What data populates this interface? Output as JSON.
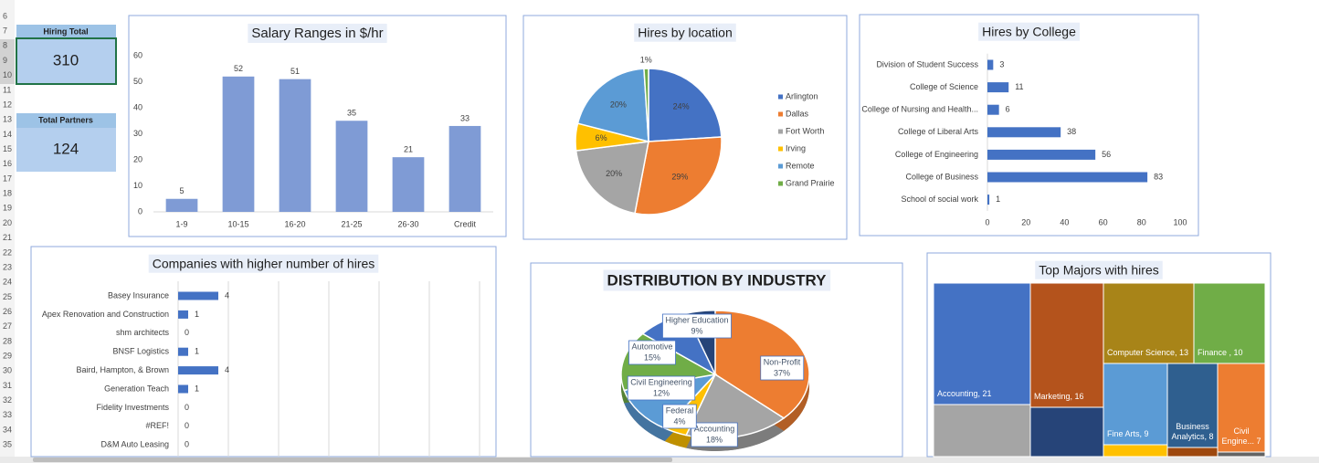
{
  "row_numbers": [
    "6",
    "7",
    "8",
    "9",
    "10",
    "11",
    "12",
    "13",
    "14",
    "15",
    "16",
    "17",
    "18",
    "19",
    "20",
    "21",
    "22",
    "23",
    "24",
    "25",
    "26",
    "27",
    "28",
    "29",
    "30",
    "31",
    "32",
    "33",
    "34",
    "35"
  ],
  "kpis": [
    {
      "label": "Hiring Total",
      "value": 310
    },
    {
      "label": "Total Partners",
      "value": 124
    }
  ],
  "chart_data": [
    {
      "type": "bar",
      "title": "Salary Ranges in $/hr",
      "categories": [
        "1-9",
        "10-15",
        "16-20",
        "21-25",
        "26-30",
        "Credit"
      ],
      "values": [
        5,
        52,
        51,
        35,
        21,
        33
      ],
      "color": "#7f9bd5",
      "ylim": [
        0,
        60
      ],
      "yticks": [
        0,
        10,
        20,
        30,
        40,
        50,
        60
      ],
      "grid": false
    },
    {
      "type": "pie",
      "title": "Hires by location",
      "categories": [
        "Arlington",
        "Dallas",
        "Fort Worth",
        "Irving",
        "Remote",
        "Grand Prairie"
      ],
      "values": [
        24,
        29,
        20,
        6,
        20,
        1
      ],
      "value_labels": [
        "24%",
        "29%",
        "20%",
        "6%",
        "20%",
        "1%"
      ],
      "colors": [
        "#4472c4",
        "#ed7d31",
        "#a5a5a5",
        "#ffc000",
        "#5b9bd5",
        "#70ad47"
      ],
      "legend": "right"
    },
    {
      "type": "bar",
      "horizontal": true,
      "title": "Hires by College",
      "categories": [
        "Division of Student Success",
        "College of Science",
        "College of Nursing and Health...",
        "College of Liberal Arts",
        "College of Engineering",
        "College of Business",
        "School of social work"
      ],
      "values": [
        3,
        11,
        6,
        38,
        56,
        83,
        1
      ],
      "color": "#4472c4",
      "xlim": [
        0,
        100
      ],
      "xticks": [
        0,
        20,
        40,
        60,
        80,
        100
      ],
      "grid": false
    },
    {
      "type": "bar",
      "horizontal": true,
      "title": "Companies with higher number of hires",
      "categories": [
        "Basey Insurance",
        "Apex Renovation and Construction",
        "shm architects",
        "BNSF Logistics",
        "Baird, Hampton, & Brown",
        "Generation Teach",
        "Fidelity Investments",
        "#REF!",
        "D&M Auto Leasing"
      ],
      "values": [
        4,
        1,
        0,
        1,
        4,
        1,
        0,
        0,
        0
      ],
      "color": "#4472c4",
      "xlim": [
        0,
        30
      ],
      "xticks": [
        0,
        5,
        10,
        15,
        20,
        25,
        30
      ],
      "grid": true
    },
    {
      "type": "pie",
      "3d": true,
      "title": "DISTRIBUTION BY INDUSTRY",
      "categories": [
        "Non-Profit",
        "Accounting",
        "Federal",
        "Civil Engineering",
        "Automotive",
        "Higher Education"
      ],
      "values": [
        37,
        18,
        4,
        12,
        15,
        9
      ],
      "value_labels": [
        "37%",
        "18%",
        "4%",
        "12%",
        "15%",
        "9%"
      ],
      "colors": [
        "#ed7d31",
        "#a5a5a5",
        "#ffc000",
        "#5b9bd5",
        "#70ad47",
        "#4472c4"
      ]
    },
    {
      "type": "treemap",
      "title": "Top Majors with hires",
      "labels": [
        "Accounting, 21",
        "Marketing, 16",
        "Computer Science, 13",
        "Finance , 10",
        "Fine Arts, 9",
        "Business Analytics, 8",
        "Civil Engine... 7"
      ],
      "values": [
        21,
        16,
        13,
        10,
        9,
        8,
        7
      ],
      "colors": [
        "#4472c4",
        "#b4531c",
        "#a88418",
        "#70ad47",
        "#5b9bd5",
        "#2f5f8f",
        "#ed7d31"
      ]
    }
  ]
}
